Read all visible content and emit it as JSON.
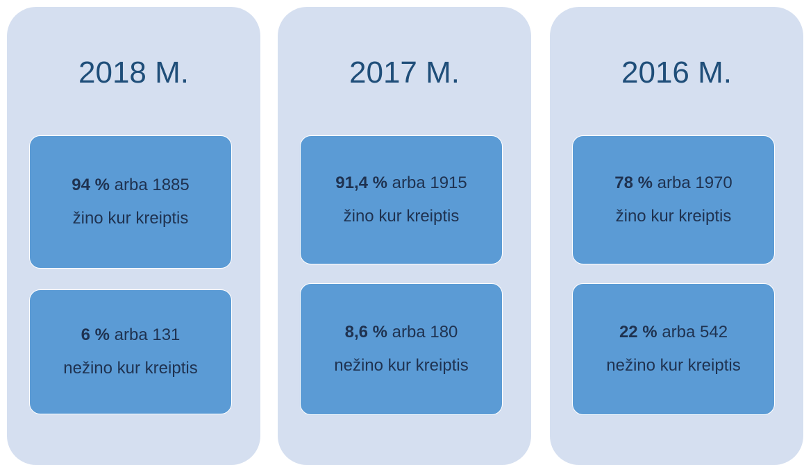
{
  "columns": [
    {
      "title": "2018 M.",
      "boxes": [
        {
          "bold": "94 %",
          "text": "arba 1885",
          "line2": "žino kur kreiptis"
        },
        {
          "bold": "6 %",
          "text": "arba 131",
          "line2": "nežino kur kreiptis"
        }
      ]
    },
    {
      "title": "2017 M.",
      "boxes": [
        {
          "bold": "91,4 %",
          "text": "arba 1915",
          "line2": "žino kur kreiptis"
        },
        {
          "bold": "8,6 %",
          "text": "arba 180",
          "line2": "nežino kur kreiptis"
        }
      ]
    },
    {
      "title": "2016 M.",
      "boxes": [
        {
          "bold": "78 %",
          "text": "arba 1970",
          "line2": "žino kur kreiptis"
        },
        {
          "bold": "22 %",
          "text": "arba 542",
          "line2": "nežino kur kreiptis"
        }
      ]
    }
  ]
}
